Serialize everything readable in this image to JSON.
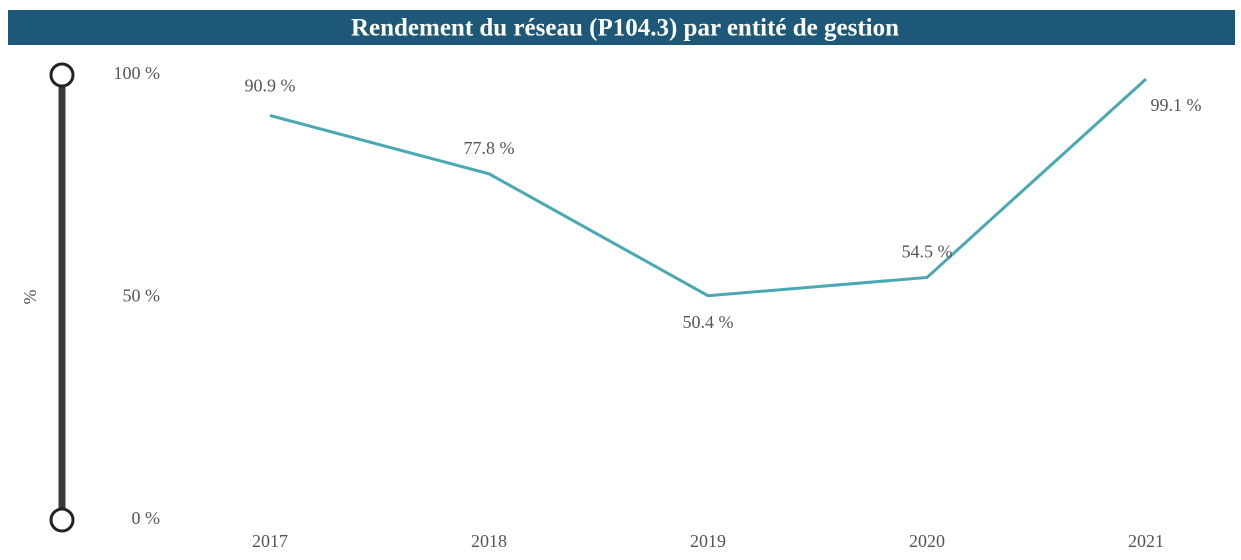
{
  "chart_data": {
    "type": "line",
    "title": "Rendement du réseau (P104.3) par entité de gestion",
    "y_label": "%",
    "categories": [
      "2017",
      "2018",
      "2019",
      "2020",
      "2021"
    ],
    "series": [
      {
        "name": "Rendement du réseau",
        "color": "#4aa8b4",
        "values": [
          90.9,
          77.8,
          50.4,
          54.5,
          99.1
        ],
        "value_labels": [
          "90.9 %",
          "77.8 %",
          "50.4 %",
          "54.5 %",
          "99.1 %"
        ]
      }
    ],
    "ylim": [
      0,
      100
    ],
    "yticks": [
      {
        "value": 0,
        "label": "0 %"
      },
      {
        "value": 50,
        "label": "50 %"
      },
      {
        "value": 100,
        "label": "100 %"
      }
    ],
    "grid": false
  }
}
